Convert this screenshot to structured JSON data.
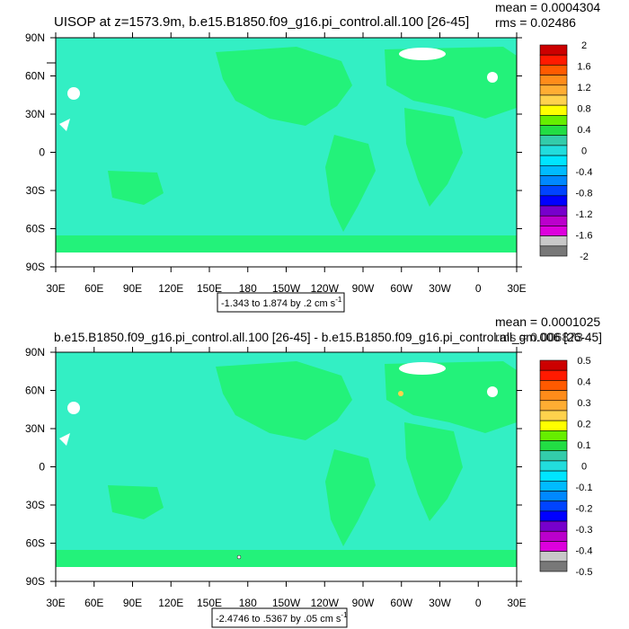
{
  "chart_data": [
    {
      "type": "heatmap",
      "title": "UISOP at z=1573.9m, b.e15.B1850.f09_g16.pi_control.all.100 [26-45]",
      "stats": {
        "mean": "mean = 0.0004304",
        "rms": "rms = 0.02486"
      },
      "range_label": "-1.343 to 1.874 by .2 cm s",
      "range_unit_exp": "-1",
      "xlabel": "",
      "ylabel": "",
      "x_ticks": [
        "30E",
        "60E",
        "90E",
        "120E",
        "150E",
        "180",
        "150W",
        "120W",
        "90W",
        "60W",
        "30W",
        "0",
        "30E"
      ],
      "y_ticks": [
        "90N",
        "60N",
        "30N",
        "0",
        "30S",
        "60S",
        "90S"
      ],
      "colorbar_labels": [
        "2",
        "1.6",
        "1.2",
        "0.8",
        "0.4",
        "0",
        "-0.4",
        "-0.8",
        "-1.2",
        "-1.6",
        "-2"
      ],
      "dominant_field_color": "#23f27a",
      "secondary_field_color": "#33efc4"
    },
    {
      "type": "heatmap",
      "title": "b.e15.B1850.f09_g16.pi_control.all.100 [26-45] - b.e15.B1850.f09_g16.pi_control.all_gm.006 [26-45]",
      "stats": {
        "mean": "mean = 0.0001025",
        "rms": "rms = 0.006873"
      },
      "range_label": "-2.4746 to .5367 by .05 cm s",
      "range_unit_exp": "-1",
      "xlabel": "",
      "ylabel": "",
      "x_ticks": [
        "30E",
        "60E",
        "90E",
        "120E",
        "150E",
        "180",
        "150W",
        "120W",
        "90W",
        "60W",
        "30W",
        "0",
        "30E"
      ],
      "y_ticks": [
        "90N",
        "60N",
        "30N",
        "0",
        "30S",
        "60S",
        "90S"
      ],
      "colorbar_labels": [
        "0.5",
        "0.4",
        "0.3",
        "0.2",
        "0.1",
        "0",
        "-0.1",
        "-0.2",
        "-0.3",
        "-0.4",
        "-0.5"
      ],
      "dominant_field_color": "#23f27a",
      "secondary_field_color": "#33efc4"
    }
  ],
  "colorbar_colors": [
    "#cc0000",
    "#ff1a00",
    "#ff5a00",
    "#ff8c1a",
    "#ffad33",
    "#ffd24d",
    "#ffff00",
    "#66ee00",
    "#22dd44",
    "#33ccaa",
    "#22dddd",
    "#00e5ff",
    "#00bbff",
    "#0088ff",
    "#0044ff",
    "#0000ff",
    "#7700cc",
    "#bb00cc",
    "#dd00dd",
    "#c8c8c8",
    "#787878"
  ]
}
